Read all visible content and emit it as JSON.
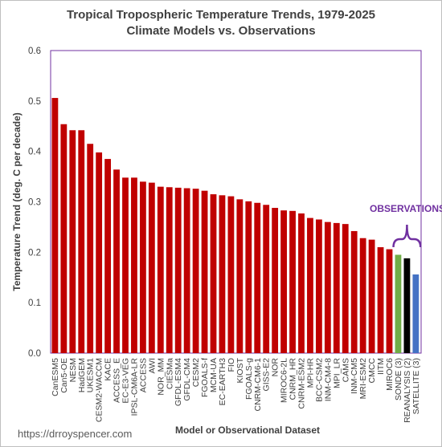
{
  "chart_data": {
    "type": "bar",
    "title": "Tropical Tropospheric Temperature Trends, 1979-2025",
    "subtitle": "Climate Models vs. Observations",
    "xlabel": "Model or Observational Dataset",
    "ylabel": "Temperature Trend (deg. C per decade)",
    "ylim": [
      0,
      0.6
    ],
    "yticks": [
      "0.0",
      "0.1",
      "0.2",
      "0.3",
      "0.4",
      "0.5",
      "0.6"
    ],
    "grid": false,
    "categories": [
      "CanESM5",
      "Can5-OE",
      "NESM",
      "HadGEM",
      "UKESM1",
      "CESM2-WACCM",
      "KACE",
      "ACCESS_E",
      "EC-E3-VEG",
      "IPSL-CM6A-LR",
      "ACCESS",
      "AWI",
      "NOR_MM",
      "CIESMa",
      "GFDL-ESM4",
      "GFDL-CM4",
      "CESM2",
      "FGOALS-f",
      "MCM-UA",
      "EC-EARTH3",
      "FIO",
      "KIOST",
      "FGOALS-g",
      "CNRM-CM6-1",
      "GISS-E2",
      "NOR",
      "MIROC6-2L",
      "CNRM_HR",
      "CNRM-ESM2",
      "MPI-HR",
      "BCC-CSM2",
      "INM-CM4-8",
      "MPI_LR",
      "CAMS",
      "INM-CM5",
      "MRI-ESM2",
      "CMCC",
      "IITM",
      "MIROC6",
      "SONDE (3)",
      "REANALYSIS (2)",
      "SATELLITE (3)"
    ],
    "values": [
      0.506,
      0.454,
      0.442,
      0.442,
      0.415,
      0.398,
      0.385,
      0.364,
      0.348,
      0.348,
      0.34,
      0.338,
      0.33,
      0.329,
      0.328,
      0.327,
      0.326,
      0.322,
      0.315,
      0.313,
      0.311,
      0.305,
      0.301,
      0.298,
      0.294,
      0.288,
      0.283,
      0.282,
      0.277,
      0.268,
      0.265,
      0.26,
      0.258,
      0.256,
      0.242,
      0.228,
      0.225,
      0.21,
      0.206,
      0.195,
      0.188,
      0.156
    ],
    "bar_colors": {
      "models": "#c00000",
      "SONDE (3)": "#70ad47",
      "REANALYSIS (2)": "#000000",
      "SATELLITE (3)": "#4472c4"
    },
    "annotations": [
      {
        "text": "OBSERVATIONS",
        "color": "#7030a0",
        "brace_over": [
          "SONDE (3)",
          "REANALYSIS (2)",
          "SATELLITE (3)"
        ]
      }
    ],
    "plot_border_color": "#7030a0"
  },
  "source": "https://drroyspencer.com"
}
